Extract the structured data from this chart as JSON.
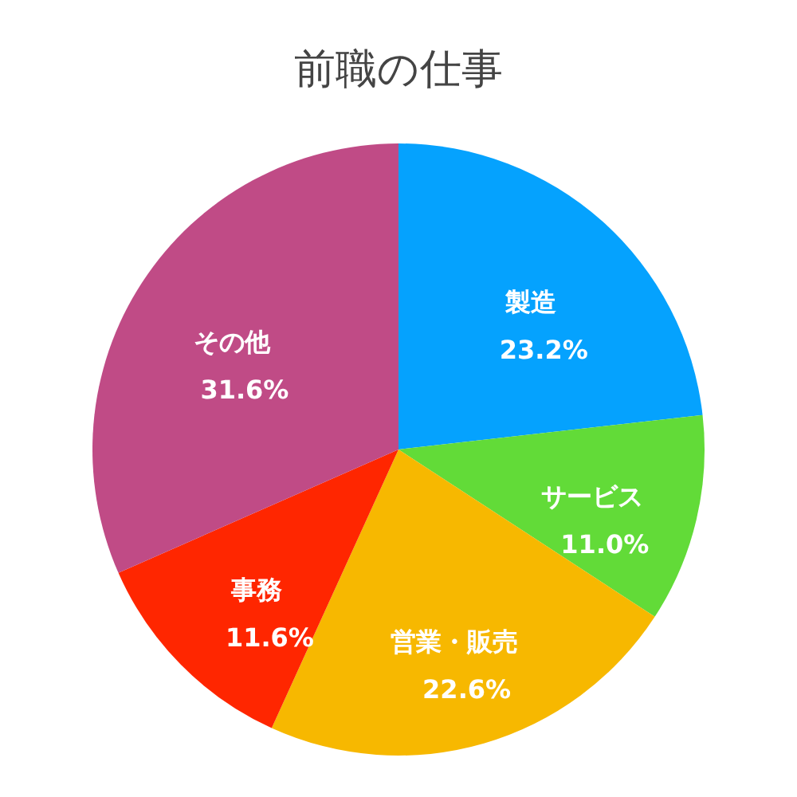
{
  "chart_data": {
    "type": "pie",
    "title": "前職の仕事",
    "categories": [
      "製造",
      "サービス",
      "営業・販売",
      "事務",
      "その他"
    ],
    "values": [
      23.2,
      11.0,
      22.6,
      11.6,
      31.6
    ],
    "colors": [
      "#05a2fe",
      "#62db38",
      "#f7b800",
      "#ff2600",
      "#c04b86"
    ],
    "value_labels": [
      "23.2%",
      "11.0%",
      "22.6%",
      "11.6%",
      "31.6%"
    ]
  }
}
